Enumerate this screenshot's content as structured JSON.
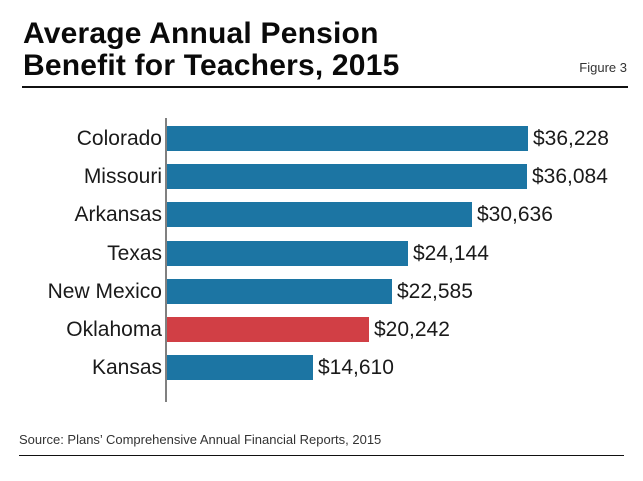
{
  "header": {
    "title_line1": "Average Annual Pension",
    "title_line2": "Benefit for Teachers, 2015",
    "figure_label": "Figure 3"
  },
  "footer": {
    "source": "Source: Plans’ Comprehensive Annual Financial Reports, 2015"
  },
  "colors": {
    "default_bar": "#1c75a3",
    "highlight_bar": "#d13f45",
    "axis": "#808080"
  },
  "chart_data": {
    "type": "bar",
    "orientation": "horizontal",
    "title": "Average Annual Pension Benefit for Teachers, 2015",
    "xlabel": "",
    "ylabel": "",
    "categories": [
      "Colorado",
      "Missouri",
      "Arkansas",
      "Texas",
      "New Mexico",
      "Oklahoma",
      "Kansas"
    ],
    "values": [
      36228,
      36084,
      30636,
      24144,
      22585,
      20242,
      14610
    ],
    "value_labels": [
      "$36,228",
      "$36,084",
      "$30,636",
      "$24,144",
      "$22,585",
      "$20,242",
      "$14,610"
    ],
    "highlighted": [
      "Oklahoma"
    ],
    "grid": false,
    "legend": null,
    "xlim": [
      0,
      36228
    ]
  }
}
